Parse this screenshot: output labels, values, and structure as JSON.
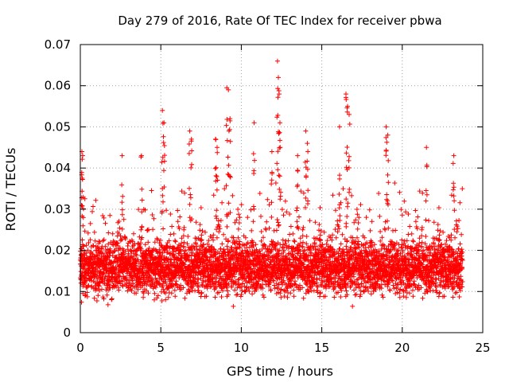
{
  "chart_data": {
    "type": "scatter",
    "title": "Day 279 of 2016, Rate Of TEC Index for receiver pbwa",
    "xlabel": "GPS time / hours",
    "ylabel": "ROTI / TECUs",
    "xlim": [
      0,
      25
    ],
    "ylim": [
      0,
      0.07
    ],
    "x_ticks": [
      0,
      5,
      10,
      15,
      20,
      25
    ],
    "x_tick_labels": [
      "0",
      "5",
      "10",
      "15",
      "20",
      "25"
    ],
    "y_ticks": [
      0,
      0.01,
      0.02,
      0.03,
      0.04,
      0.05,
      0.06,
      0.07
    ],
    "y_tick_labels": [
      "0",
      "0.01",
      "0.02",
      "0.03",
      "0.04",
      "0.05",
      "0.06",
      "0.07"
    ],
    "grid": true,
    "marker": "+",
    "series_color": "#ff0000",
    "series": [
      {
        "name": "ROTI",
        "x_range": [
          0,
          23.75
        ],
        "sample_interval_hours": 0.02,
        "typical_band": [
          0.005,
          0.025
        ],
        "notable_points": [
          {
            "x": 0.1,
            "y": 0.044
          },
          {
            "x": 0.15,
            "y": 0.043
          },
          {
            "x": 2.6,
            "y": 0.043
          },
          {
            "x": 3.8,
            "y": 0.043
          },
          {
            "x": 5.1,
            "y": 0.054
          },
          {
            "x": 5.2,
            "y": 0.051
          },
          {
            "x": 6.8,
            "y": 0.049
          },
          {
            "x": 6.9,
            "y": 0.047
          },
          {
            "x": 8.4,
            "y": 0.047
          },
          {
            "x": 8.5,
            "y": 0.045
          },
          {
            "x": 9.1,
            "y": 0.0595
          },
          {
            "x": 9.2,
            "y": 0.059
          },
          {
            "x": 9.3,
            "y": 0.052
          },
          {
            "x": 10.8,
            "y": 0.051
          },
          {
            "x": 11.9,
            "y": 0.044
          },
          {
            "x": 12.25,
            "y": 0.066
          },
          {
            "x": 12.3,
            "y": 0.062
          },
          {
            "x": 12.35,
            "y": 0.058
          },
          {
            "x": 12.4,
            "y": 0.051
          },
          {
            "x": 13.5,
            "y": 0.043
          },
          {
            "x": 14.0,
            "y": 0.049
          },
          {
            "x": 14.1,
            "y": 0.046
          },
          {
            "x": 16.1,
            "y": 0.05
          },
          {
            "x": 16.5,
            "y": 0.058
          },
          {
            "x": 16.6,
            "y": 0.055
          },
          {
            "x": 16.7,
            "y": 0.053
          },
          {
            "x": 19.0,
            "y": 0.05
          },
          {
            "x": 19.1,
            "y": 0.048
          },
          {
            "x": 21.5,
            "y": 0.045
          },
          {
            "x": 23.2,
            "y": 0.043
          }
        ]
      }
    ]
  }
}
